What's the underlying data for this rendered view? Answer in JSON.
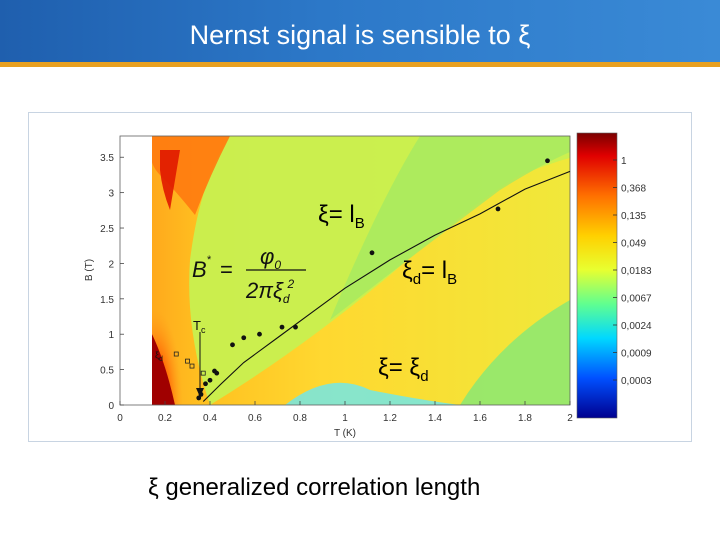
{
  "slide": {
    "title": "Nernst signal is sensible to ξ",
    "caption": "ξ generalized correlation length",
    "colors": {
      "header": "#2c78c8",
      "header_rule": "#e8a020"
    }
  },
  "chart_data": {
    "type": "heatmap",
    "title": "",
    "xlabel": "T (K)",
    "ylabel": "B (T)",
    "xlim": [
      0,
      2
    ],
    "ylim": [
      0,
      3.8
    ],
    "x_ticks": [
      "0",
      "0.2",
      "0.4",
      "0.6",
      "0.8",
      "1",
      "1.2",
      "1.4",
      "1.6",
      "1.8",
      "2"
    ],
    "y_ticks": [
      "0",
      "0.5",
      "1",
      "1.5",
      "2",
      "2.5",
      "3",
      "3.5"
    ],
    "colorbar": {
      "scale": "log",
      "ticks": [
        "1",
        "0,368",
        "0,135",
        "0,049",
        "0,0183",
        "0,0067",
        "0,0024",
        "0,0009",
        "0,0003"
      ]
    },
    "annotations": {
      "xi_lb_prefix": "ξ= l",
      "xi_lb_sub": "B",
      "xid_lb_prefix": "ξ",
      "xid_lb_sub1": "d",
      "xid_lb_mid": "= l",
      "xid_lb_sub2": "B",
      "xi_xid_prefix": "ξ= ξ",
      "xi_xid_sub": "d",
      "tc_label": "T",
      "tc_sub": "c",
      "formula_lhs": "B",
      "formula_star": "*",
      "formula_eq": "=",
      "formula_num": "φ",
      "formula_num_sub": "0",
      "formula_den": "2πξ",
      "formula_den_sub": "d",
      "formula_den_sup": "2",
      "xid_marker_label": "ξ",
      "xid_marker_sub": "d"
    },
    "series": [
      {
        "values_x": [
          0.35,
          0.36,
          0.38,
          0.4,
          0.42,
          0.43,
          0.5,
          0.55,
          0.62,
          0.72,
          0.78,
          1.12,
          1.68,
          1.9
        ],
        "values_y": [
          0.1,
          0.15,
          0.3,
          0.35,
          0.48,
          0.45,
          0.85,
          0.95,
          1.0,
          1.1,
          1.1,
          2.15,
          2.77,
          3.45
        ]
      }
    ],
    "crossover_line": {
      "x": [
        0.37,
        0.45,
        0.55,
        0.7,
        0.85,
        1.0,
        1.2,
        1.4,
        1.6,
        1.8,
        2.0
      ],
      "y": [
        0.05,
        0.3,
        0.6,
        0.95,
        1.3,
        1.65,
        2.05,
        2.4,
        2.7,
        3.05,
        3.3
      ]
    },
    "xid_markers": {
      "x": [
        0.25,
        0.3,
        0.32,
        0.37
      ],
      "y": [
        0.72,
        0.62,
        0.55,
        0.45
      ]
    }
  }
}
